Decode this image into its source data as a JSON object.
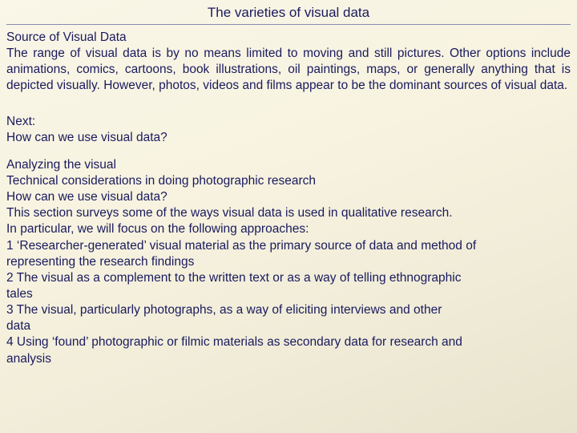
{
  "title": "The varieties of visual data",
  "section1_heading": "Source of Visual Data",
  "section1_para": "The range of visual data is by no means limited to moving and still pictures. Other options include animations, comics, cartoons, book illustrations, oil paintings, maps, or generally anything that is depicted visually. However, photos, videos and films appear to be the dominant sources of visual data.",
  "next_label": "Next:",
  "next_question": "How can we use visual data?",
  "lines": {
    "l1": "Analyzing the visual",
    "l2": "Technical considerations in doing photographic research",
    "l3": "How can we use visual data?",
    "l4": "This section surveys some of the ways visual data is used in qualitative research.",
    "l5": "In particular, we will focus on the following approaches:",
    "l6": "1 ‘Researcher-generated’ visual material as the primary source of data and method of",
    "l7": "representing the research findings",
    "l8": "2 The visual as a complement to the written text or as a way of telling ethnographic",
    "l9": "tales",
    "l10": "3 The visual, particularly photographs, as a way of eliciting interviews and other",
    "l11": "data",
    "l12": "4 Using ‘found’ photographic or filmic materials as secondary data for research and",
    "l13": "analysis"
  }
}
